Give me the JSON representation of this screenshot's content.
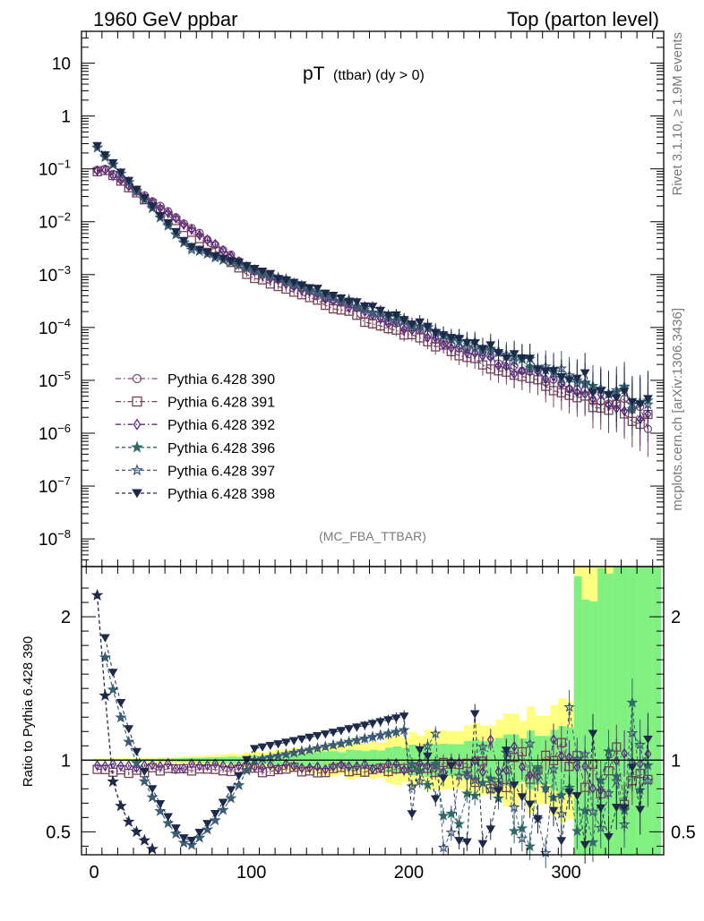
{
  "header": {
    "left_title": "1960 GeV ppbar",
    "right_title": "Top (parton level)"
  },
  "side_text": {
    "rivet": "Rivet 3.1.10, ≥ 1.9M events",
    "mcplots": "mcplots.cern.ch [arXiv:1306.3436]"
  },
  "chart_data": {
    "type": "scatter",
    "title_main": "pT",
    "title_sub": "(ttbar) (dy > 0)",
    "analysis_tag": "(MC_FBA_TTBAR)",
    "xlim": [
      -8,
      362
    ],
    "x_ticks": [
      0,
      100,
      200,
      300
    ],
    "upper": {
      "yscale": "log",
      "ylim": [
        3e-09,
        40
      ],
      "y_tick_labels": [
        "10",
        "1",
        "10^-1",
        "10^-2",
        "10^-3",
        "10^-4",
        "10^-5",
        "10^-6",
        "10^-7",
        "10^-8"
      ],
      "legend_position": "lower-left",
      "series": [
        {
          "name": "Pythia 6.428 390",
          "color": "#7d4a7d",
          "marker": "circle-open",
          "line": "dashdot",
          "a": 0.11,
          "peak": 5,
          "slope1": 0.047,
          "slope2": 0.0255,
          "knee": 100
        },
        {
          "name": "Pythia 6.428 391",
          "color": "#7a4156",
          "marker": "square-open",
          "line": "dashdot",
          "a": 0.105,
          "peak": 5,
          "slope1": 0.05,
          "slope2": 0.0255,
          "knee": 100
        },
        {
          "name": "Pythia 6.428 392",
          "color": "#5b2b86",
          "marker": "diamond-open",
          "line": "dashdot",
          "a": 0.105,
          "peak": 5,
          "slope1": 0.047,
          "slope2": 0.0255,
          "knee": 100
        },
        {
          "name": "Pythia 6.428 396",
          "color": "#2f6a6a",
          "marker": "star-filled",
          "line": "dashed",
          "a": 0.25,
          "peak": 2,
          "slope1": 0.075,
          "slope2": 0.0235,
          "knee": 60
        },
        {
          "name": "Pythia 6.428 397",
          "color": "#3e5a78",
          "marker": "star-open",
          "line": "dashed",
          "a": 0.25,
          "peak": 2,
          "slope1": 0.075,
          "slope2": 0.0235,
          "knee": 60
        },
        {
          "name": "Pythia 6.428 398",
          "color": "#1e2a4a",
          "marker": "triangle-down-filled",
          "line": "dashed",
          "a": 0.27,
          "peak": 2,
          "slope1": 0.075,
          "slope2": 0.0235,
          "knee": 60
        }
      ]
    },
    "ratio": {
      "ylabel": "Ratio to Pythia 6.428 390",
      "ylim": [
        0.34,
        2.35
      ],
      "y_ticks": [
        0.5,
        1,
        2
      ],
      "reference_line": 1,
      "band_colors": {
        "outer": "#ffff80",
        "inner": "#80f080"
      },
      "steep_series_points": [
        {
          "x": 2,
          "y": 2.15
        },
        {
          "x": 7,
          "y": 1.45
        },
        {
          "x": 12,
          "y": 0.85
        },
        {
          "x": 17,
          "y": 0.68
        },
        {
          "x": 22,
          "y": 0.57
        },
        {
          "x": 27,
          "y": 0.5
        },
        {
          "x": 32,
          "y": 0.44
        },
        {
          "x": 37,
          "y": 0.38
        }
      ]
    }
  }
}
